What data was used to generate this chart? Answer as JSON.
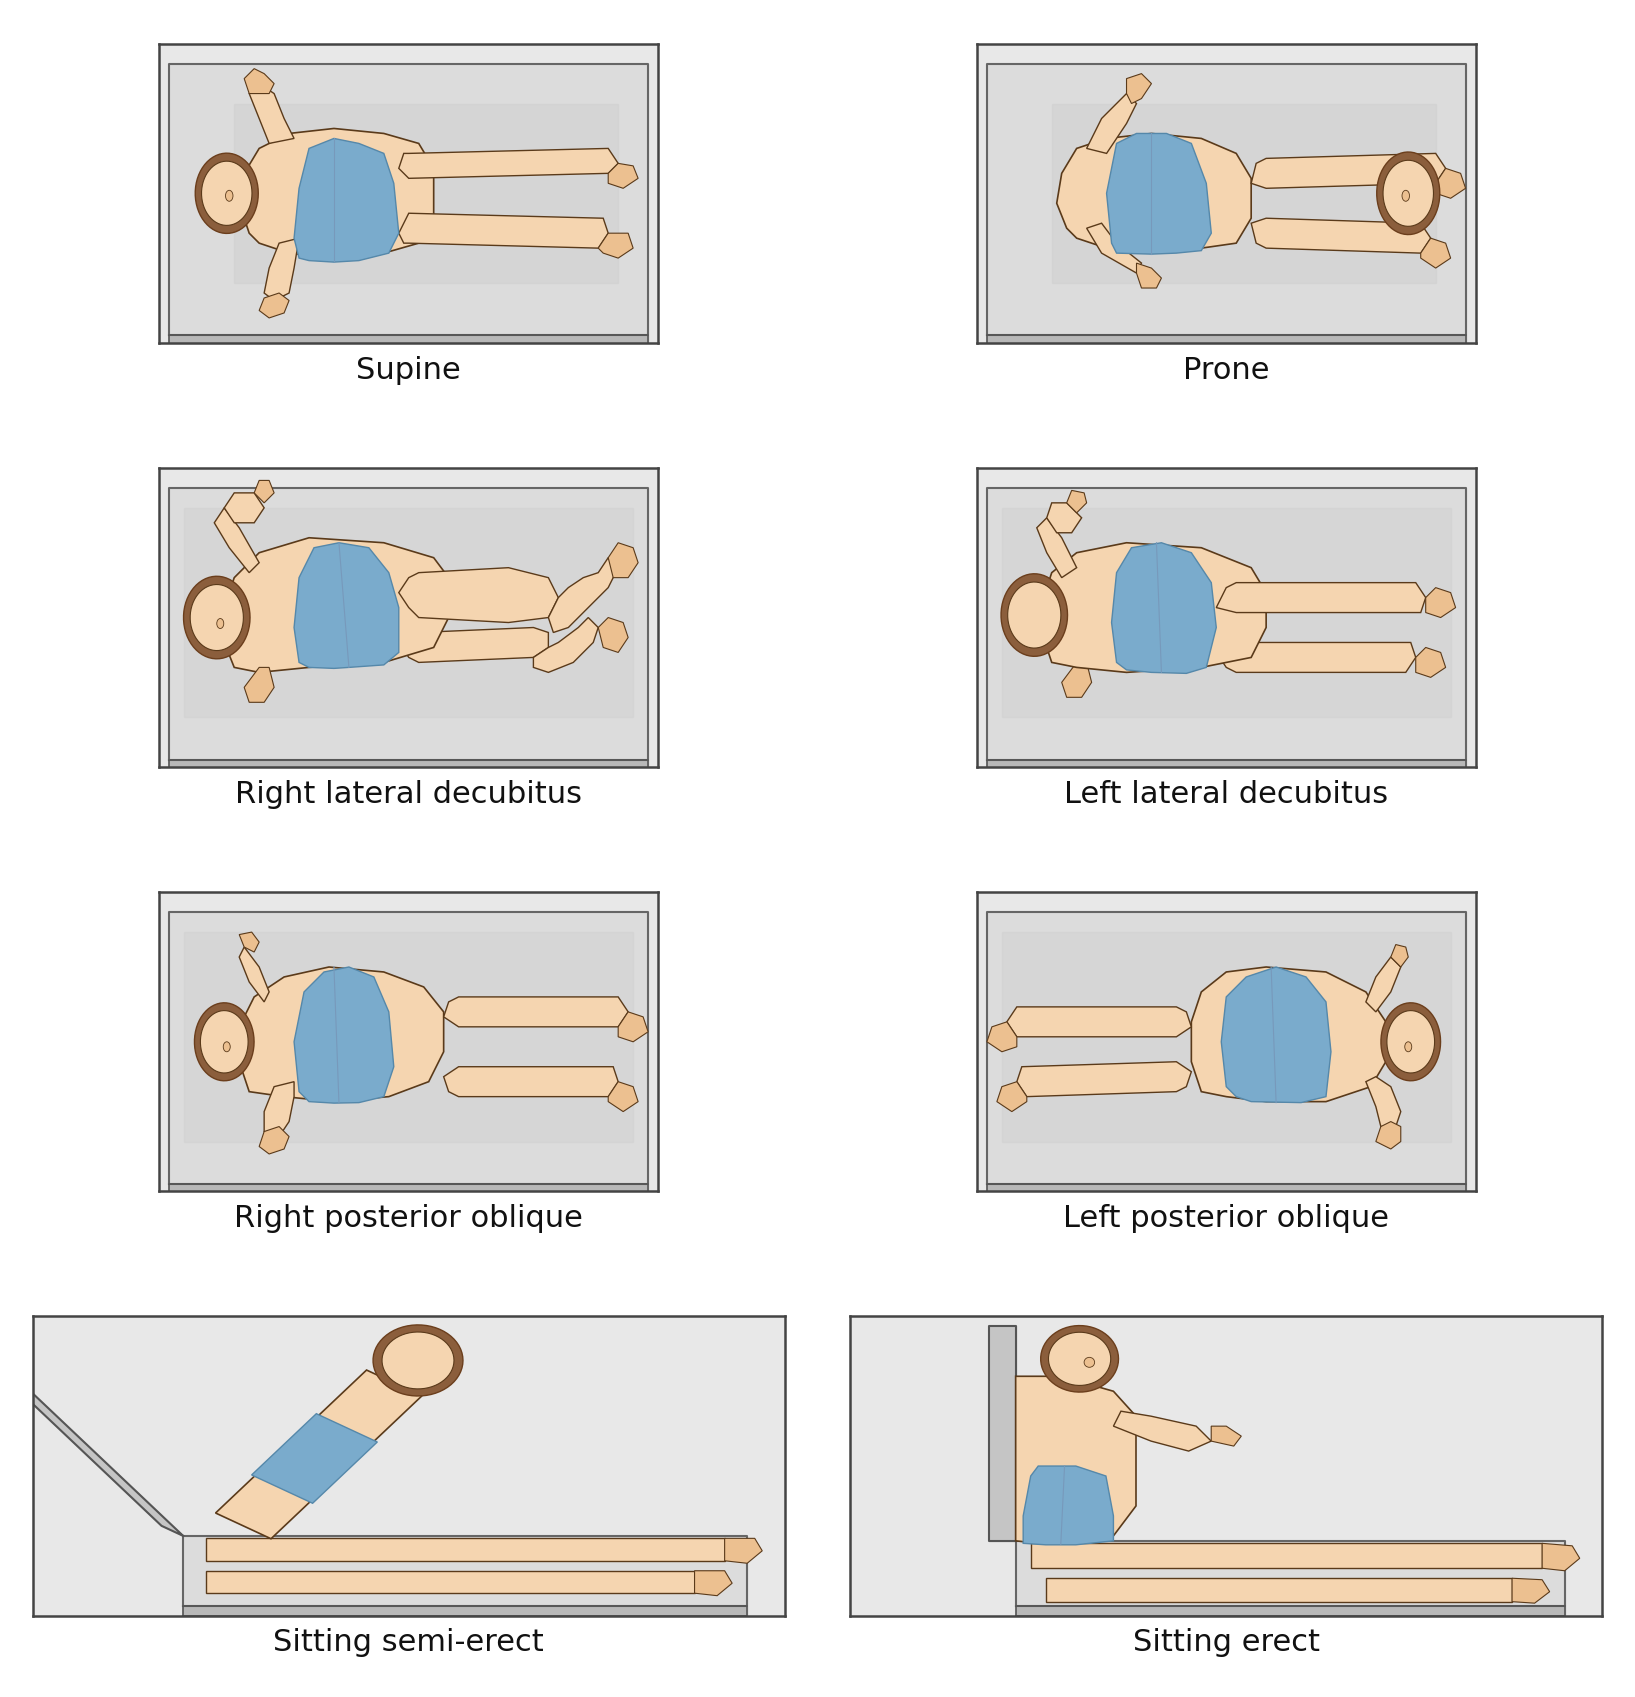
{
  "background_color": "#ffffff",
  "panel_bg": "#e8e8e8",
  "table_top": "#dcdcdc",
  "table_side": "#b8b8b8",
  "table_edge": "#555555",
  "skin_light": "#f5d5b0",
  "skin_mid": "#ecc090",
  "skin_dark": "#d4a070",
  "shorts_light": "#7aabcc",
  "shorts_dark": "#5588aa",
  "shorts_line": "#4477aa",
  "hair": "#8b5e3c",
  "hair_dark": "#6b3e1c",
  "outline": "#5a3a1a",
  "labels": [
    "Supine",
    "Prone",
    "Right lateral decubitus",
    "Left lateral decubitus",
    "Right posterior oblique",
    "Left posterior oblique",
    "Sitting semi-erect",
    "Sitting erect"
  ],
  "label_fontsize": 22,
  "fig_width": 16.35,
  "fig_height": 16.97
}
